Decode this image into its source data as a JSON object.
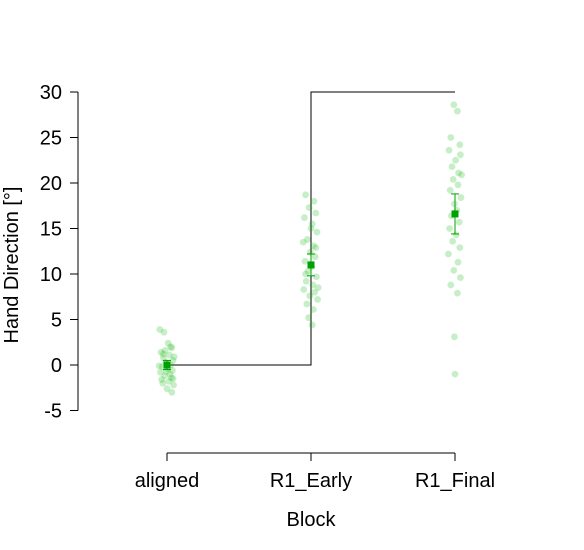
{
  "chart_data": {
    "type": "scatter",
    "title": "",
    "xlabel": "Block",
    "ylabel": "Hand Direction [°]",
    "categories": [
      "aligned",
      "R1_Early",
      "R1_Final"
    ],
    "yticks": [
      -5,
      0,
      5,
      10,
      15,
      20,
      25,
      30
    ],
    "ylim": [
      -9,
      36
    ],
    "grid": false,
    "legend": "none",
    "colors": {
      "points": "#00b400",
      "mean": "#00a000",
      "step_line": "#000000"
    },
    "rotation_schedule": [
      {
        "category": "aligned",
        "value": 0
      },
      {
        "category": "R1_Early",
        "value": 30
      },
      {
        "category": "R1_Final",
        "value": 30
      }
    ],
    "series": [
      {
        "category": "aligned",
        "mean": 0.0,
        "ci": [
          -0.5,
          0.5
        ],
        "points": [
          [
            -0.12,
            3.9
          ],
          [
            -0.05,
            3.6
          ],
          [
            0.02,
            2.4
          ],
          [
            0.08,
            1.9
          ],
          [
            -0.1,
            1.4
          ],
          [
            0.04,
            1.1
          ],
          [
            -0.06,
            0.8
          ],
          [
            0.1,
            0.5
          ],
          [
            -0.02,
            0.3
          ],
          [
            0.06,
            0.0
          ],
          [
            -0.08,
            -0.2
          ],
          [
            0.01,
            -0.4
          ],
          [
            0.09,
            -0.6
          ],
          [
            -0.11,
            -0.8
          ],
          [
            0.05,
            -1.0
          ],
          [
            -0.04,
            -1.2
          ],
          [
            0.07,
            -1.4
          ],
          [
            -0.09,
            -1.6
          ],
          [
            0.03,
            -1.8
          ],
          [
            -0.07,
            -2.0
          ],
          [
            0.11,
            -2.2
          ],
          [
            0.0,
            -2.6
          ],
          [
            0.08,
            -3.0
          ],
          [
            -0.03,
            1.6
          ],
          [
            0.12,
            0.9
          ],
          [
            -0.13,
            -0.1
          ],
          [
            0.06,
            2.0
          ],
          [
            -0.01,
            -0.7
          ],
          [
            0.1,
            -1.5
          ],
          [
            -0.06,
            1.2
          ]
        ]
      },
      {
        "category": "R1_Early",
        "mean": 11.0,
        "ci": [
          9.8,
          12.2
        ],
        "points": [
          [
            -0.09,
            18.7
          ],
          [
            0.05,
            18.0
          ],
          [
            -0.03,
            17.3
          ],
          [
            0.08,
            16.7
          ],
          [
            -0.11,
            16.2
          ],
          [
            0.02,
            15.5
          ],
          [
            0.1,
            14.6
          ],
          [
            -0.06,
            13.8
          ],
          [
            0.04,
            13.1
          ],
          [
            -0.01,
            12.4
          ],
          [
            0.07,
            11.9
          ],
          [
            -0.1,
            11.4
          ],
          [
            0.01,
            10.8
          ],
          [
            -0.05,
            10.3
          ],
          [
            0.09,
            9.7
          ],
          [
            -0.08,
            9.2
          ],
          [
            0.03,
            8.8
          ],
          [
            -0.12,
            8.3
          ],
          [
            0.06,
            8.0
          ],
          [
            -0.02,
            7.6
          ],
          [
            0.11,
            7.2
          ],
          [
            -0.07,
            6.7
          ],
          [
            0.04,
            6.1
          ],
          [
            -0.04,
            5.2
          ],
          [
            0.02,
            4.4
          ],
          [
            0.08,
            12.9
          ],
          [
            -0.09,
            10.0
          ],
          [
            0.12,
            8.5
          ],
          [
            -0.13,
            13.5
          ],
          [
            0.0,
            15.0
          ]
        ]
      },
      {
        "category": "R1_Final",
        "mean": 16.6,
        "ci": [
          14.4,
          18.8
        ],
        "points": [
          [
            -0.02,
            28.6
          ],
          [
            0.04,
            27.9
          ],
          [
            -0.07,
            25.0
          ],
          [
            0.08,
            24.2
          ],
          [
            -0.1,
            23.6
          ],
          [
            0.09,
            23.1
          ],
          [
            0.01,
            22.5
          ],
          [
            -0.05,
            21.8
          ],
          [
            0.06,
            21.1
          ],
          [
            -0.03,
            20.4
          ],
          [
            0.05,
            19.8
          ],
          [
            -0.08,
            19.2
          ],
          [
            0.1,
            18.4
          ],
          [
            -0.01,
            17.7
          ],
          [
            0.03,
            17.0
          ],
          [
            -0.06,
            16.4
          ],
          [
            0.07,
            15.7
          ],
          [
            -0.09,
            15.0
          ],
          [
            0.02,
            14.3
          ],
          [
            -0.04,
            13.6
          ],
          [
            0.08,
            12.9
          ],
          [
            -0.11,
            12.2
          ],
          [
            0.05,
            11.3
          ],
          [
            -0.02,
            10.4
          ],
          [
            0.09,
            9.6
          ],
          [
            -0.07,
            8.8
          ],
          [
            0.04,
            7.9
          ],
          [
            -0.01,
            3.1
          ],
          [
            0.0,
            -1.0
          ],
          [
            0.11,
            20.9
          ]
        ]
      }
    ]
  }
}
